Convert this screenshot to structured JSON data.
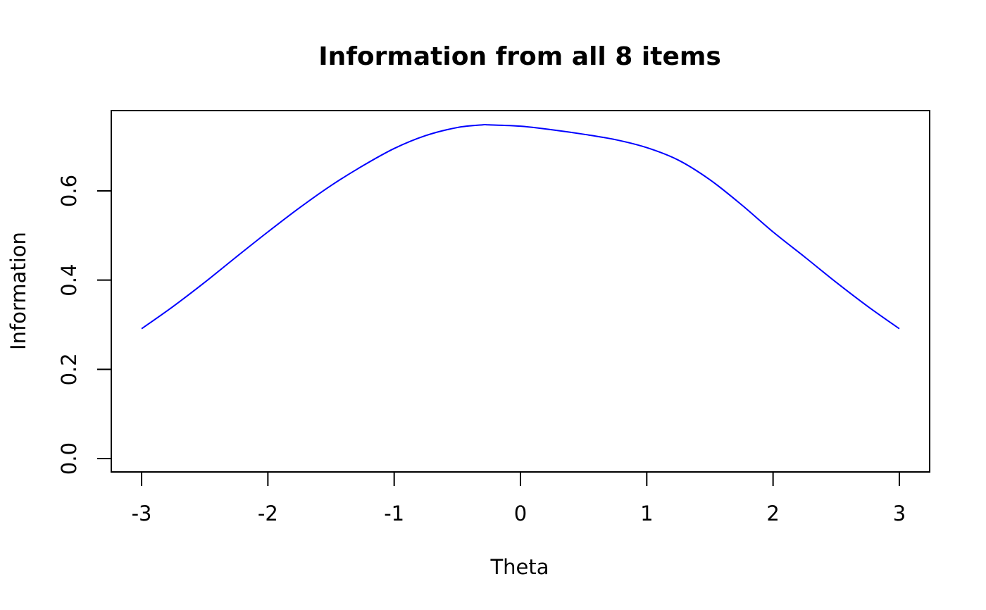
{
  "chart_data": {
    "type": "line",
    "title": "Information from all 8 items",
    "xlabel": "Theta",
    "ylabel": "Information",
    "xlim": [
      -3.24,
      3.24
    ],
    "ylim": [
      -0.03,
      0.78
    ],
    "xticks": [
      -3,
      -2,
      -1,
      0,
      1,
      2,
      3
    ],
    "xtick_labels": [
      "-3",
      "-2",
      "-1",
      "0",
      "1",
      "2",
      "3"
    ],
    "yticks": [
      0.0,
      0.2,
      0.4,
      0.6
    ],
    "ytick_labels": [
      "0.0",
      "0.2",
      "0.4",
      "0.6"
    ],
    "grid": false,
    "series": [
      {
        "color": "#0000ff",
        "x": [
          -3.0,
          -2.75,
          -2.5,
          -2.25,
          -2.0,
          -1.75,
          -1.5,
          -1.25,
          -1.0,
          -0.75,
          -0.5,
          -0.3,
          -0.25,
          0.0,
          0.25,
          0.5,
          0.75,
          1.0,
          1.25,
          1.5,
          1.75,
          2.0,
          2.25,
          2.5,
          2.75,
          3.0
        ],
        "y": [
          0.291,
          0.341,
          0.395,
          0.452,
          0.508,
          0.562,
          0.612,
          0.656,
          0.695,
          0.724,
          0.742,
          0.748,
          0.748,
          0.745,
          0.737,
          0.727,
          0.715,
          0.697,
          0.669,
          0.625,
          0.569,
          0.508,
          0.452,
          0.395,
          0.341,
          0.291
        ]
      }
    ]
  }
}
